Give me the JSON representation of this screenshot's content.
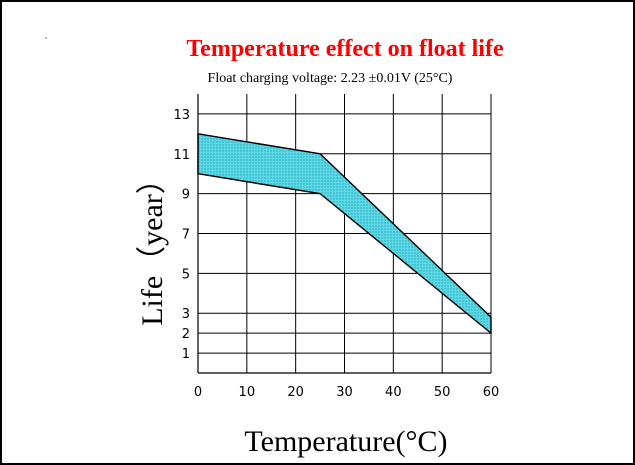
{
  "chart_data": {
    "type": "area",
    "title": "Temperature effect on float life",
    "subtitle": "Float charging voltage:  2.23 ±0.01V (25°C)",
    "xlabel": "Temperature(°C)",
    "ylabel": "Life（year）",
    "xlim": [
      0,
      60
    ],
    "ylim": [
      0,
      14
    ],
    "x_ticks": [
      0,
      10,
      20,
      30,
      40,
      50,
      60
    ],
    "y_ticks": [
      1,
      2,
      3,
      5,
      7,
      9,
      11,
      13
    ],
    "grid": true,
    "series": [
      {
        "name": "",
        "x": [
          0,
          25,
          60
        ],
        "upper": [
          12,
          11,
          2.8
        ],
        "lower": [
          10,
          9,
          2
        ]
      }
    ],
    "colors": {
      "band_fill": "#33ccdd",
      "title": "#ff0000"
    }
  }
}
